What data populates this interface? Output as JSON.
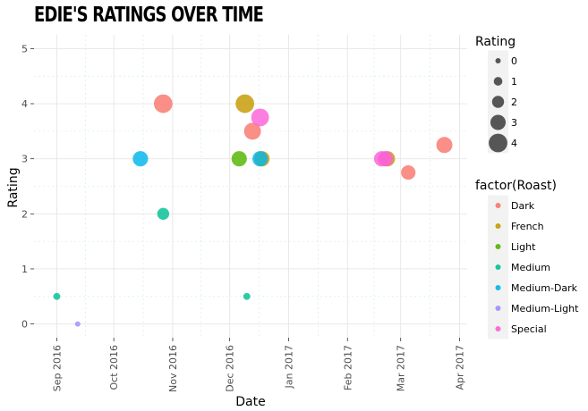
{
  "chart_data": {
    "type": "scatter",
    "title": "Edie's ratings over time",
    "xlabel": "Date",
    "ylabel": "Rating",
    "xlim": [
      "2016-08-20",
      "2017-04-05"
    ],
    "ylim": [
      -0.25,
      5.25
    ],
    "x_ticks": [
      {
        "date": "2016-09-01",
        "label": "Sep 2016"
      },
      {
        "date": "2016-10-01",
        "label": "Oct 2016"
      },
      {
        "date": "2016-11-01",
        "label": "Nov 2016"
      },
      {
        "date": "2016-12-01",
        "label": "Dec 2016"
      },
      {
        "date": "2017-01-01",
        "label": "Jan 2017"
      },
      {
        "date": "2017-02-01",
        "label": "Feb 2017"
      },
      {
        "date": "2017-03-01",
        "label": "Mar 2017"
      },
      {
        "date": "2017-04-01",
        "label": "Apr 2017"
      }
    ],
    "y_ticks": [
      0,
      1,
      2,
      3,
      4,
      5
    ],
    "grid": true,
    "size_legend": {
      "title": "Rating",
      "values": [
        0,
        1,
        2,
        3,
        4
      ]
    },
    "color_legend": {
      "title": "factor(Roast)",
      "position": "right"
    },
    "series": [
      {
        "name": "Dark",
        "color": "#F8766D",
        "points": [
          {
            "x": "2016-10-27",
            "y": 4
          },
          {
            "x": "2016-12-13",
            "y": 3.5
          },
          {
            "x": "2017-03-05",
            "y": 2.75
          },
          {
            "x": "2017-03-24",
            "y": 3.25
          }
        ]
      },
      {
        "name": "French",
        "color": "#C49A00",
        "points": [
          {
            "x": "2016-12-09",
            "y": 4
          },
          {
            "x": "2016-12-18",
            "y": 3
          },
          {
            "x": "2017-02-22",
            "y": 3
          }
        ]
      },
      {
        "name": "Light",
        "color": "#53B400",
        "points": [
          {
            "x": "2016-12-06",
            "y": 3
          }
        ]
      },
      {
        "name": "Medium",
        "color": "#00C094",
        "points": [
          {
            "x": "2016-09-01",
            "y": 0.5
          },
          {
            "x": "2016-10-27",
            "y": 2
          },
          {
            "x": "2016-12-10",
            "y": 0.5
          }
        ]
      },
      {
        "name": "Medium-Dark",
        "color": "#00B6EB",
        "points": [
          {
            "x": "2016-10-15",
            "y": 3
          },
          {
            "x": "2016-12-17",
            "y": 3
          }
        ]
      },
      {
        "name": "Medium-Light",
        "color": "#A58AFF",
        "points": [
          {
            "x": "2016-09-12",
            "y": 0
          }
        ]
      },
      {
        "name": "Special",
        "color": "#FB61D7",
        "points": [
          {
            "x": "2016-12-17",
            "y": 3.75
          },
          {
            "x": "2017-02-19",
            "y": 3
          },
          {
            "x": "2017-02-21",
            "y": 3
          }
        ]
      }
    ]
  }
}
